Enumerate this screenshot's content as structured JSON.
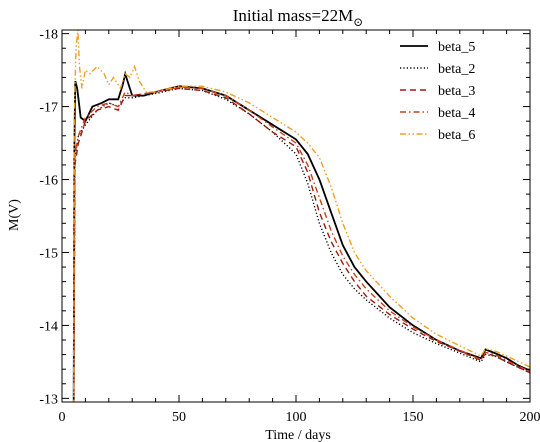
{
  "chart_data": {
    "type": "line",
    "title": "Initial mass=22M",
    "title_subscript_symbol": "⊙",
    "xlabel": "Time / days",
    "ylabel": "M(V)",
    "xlim": [
      0,
      200
    ],
    "ylim": [
      -12.95,
      -18.05
    ],
    "y_axis_inverted": true,
    "xticks": [
      0,
      50,
      100,
      150,
      200
    ],
    "yticks": [
      -13,
      -14,
      -15,
      -16,
      -17,
      -18
    ],
    "grid": false,
    "legend_position": "top-right",
    "series": [
      {
        "name": "beta_5",
        "color": "#000000",
        "dash": "solid",
        "points": [
          [
            5,
            -12.9
          ],
          [
            5.3,
            -16.5
          ],
          [
            5.7,
            -17.35
          ],
          [
            6.5,
            -17.25
          ],
          [
            8,
            -16.85
          ],
          [
            10,
            -16.8
          ],
          [
            13,
            -17
          ],
          [
            17,
            -17.05
          ],
          [
            20,
            -17.1
          ],
          [
            24,
            -17.1
          ],
          [
            26,
            -17.3
          ],
          [
            27,
            -17.45
          ],
          [
            28,
            -17.35
          ],
          [
            30,
            -17.15
          ],
          [
            35,
            -17.15
          ],
          [
            40,
            -17.2
          ],
          [
            50,
            -17.28
          ],
          [
            60,
            -17.25
          ],
          [
            70,
            -17.15
          ],
          [
            80,
            -16.95
          ],
          [
            90,
            -16.75
          ],
          [
            100,
            -16.55
          ],
          [
            105,
            -16.35
          ],
          [
            110,
            -16.0
          ],
          [
            115,
            -15.55
          ],
          [
            120,
            -15.1
          ],
          [
            125,
            -14.8
          ],
          [
            130,
            -14.6
          ],
          [
            140,
            -14.25
          ],
          [
            150,
            -14.0
          ],
          [
            160,
            -13.8
          ],
          [
            170,
            -13.65
          ],
          [
            179,
            -13.55
          ],
          [
            181,
            -13.67
          ],
          [
            185,
            -13.62
          ],
          [
            190,
            -13.55
          ],
          [
            195,
            -13.45
          ],
          [
            200,
            -13.38
          ]
        ]
      },
      {
        "name": "beta_2",
        "color": "#000000",
        "dash": "dotted",
        "points": [
          [
            5,
            -12.9
          ],
          [
            5.5,
            -16.3
          ],
          [
            7,
            -16.6
          ],
          [
            10,
            -16.75
          ],
          [
            15,
            -16.95
          ],
          [
            20,
            -17.05
          ],
          [
            24,
            -17.0
          ],
          [
            27,
            -17.12
          ],
          [
            30,
            -17.12
          ],
          [
            40,
            -17.18
          ],
          [
            50,
            -17.25
          ],
          [
            60,
            -17.22
          ],
          [
            70,
            -17.1
          ],
          [
            80,
            -16.9
          ],
          [
            90,
            -16.65
          ],
          [
            100,
            -16.35
          ],
          [
            105,
            -15.95
          ],
          [
            110,
            -15.4
          ],
          [
            115,
            -15.0
          ],
          [
            120,
            -14.7
          ],
          [
            125,
            -14.5
          ],
          [
            130,
            -14.35
          ],
          [
            140,
            -14.1
          ],
          [
            150,
            -13.9
          ],
          [
            160,
            -13.75
          ],
          [
            170,
            -13.62
          ],
          [
            179,
            -13.5
          ],
          [
            181,
            -13.6
          ],
          [
            185,
            -13.58
          ],
          [
            190,
            -13.5
          ],
          [
            200,
            -13.35
          ]
        ]
      },
      {
        "name": "beta_3",
        "color": "#9b1c10",
        "dash": "dashed",
        "points": [
          [
            5,
            -12.9
          ],
          [
            5.5,
            -16.2
          ],
          [
            7,
            -16.5
          ],
          [
            10,
            -16.8
          ],
          [
            15,
            -16.95
          ],
          [
            20,
            -17.0
          ],
          [
            24,
            -16.95
          ],
          [
            27,
            -17.15
          ],
          [
            30,
            -17.15
          ],
          [
            40,
            -17.2
          ],
          [
            50,
            -17.25
          ],
          [
            60,
            -17.22
          ],
          [
            70,
            -17.12
          ],
          [
            80,
            -16.9
          ],
          [
            90,
            -16.65
          ],
          [
            100,
            -16.45
          ],
          [
            105,
            -16.1
          ],
          [
            110,
            -15.55
          ],
          [
            115,
            -15.15
          ],
          [
            120,
            -14.85
          ],
          [
            125,
            -14.6
          ],
          [
            130,
            -14.4
          ],
          [
            140,
            -14.15
          ],
          [
            150,
            -13.95
          ],
          [
            160,
            -13.78
          ],
          [
            170,
            -13.65
          ],
          [
            179,
            -13.52
          ],
          [
            181,
            -13.62
          ],
          [
            185,
            -13.58
          ],
          [
            190,
            -13.5
          ],
          [
            200,
            -13.35
          ]
        ]
      },
      {
        "name": "beta_4",
        "color": "#c8401a",
        "dash": "dashdot",
        "points": [
          [
            5,
            -12.9
          ],
          [
            5.5,
            -16.35
          ],
          [
            7,
            -16.6
          ],
          [
            10,
            -16.85
          ],
          [
            15,
            -17.0
          ],
          [
            20,
            -17.05
          ],
          [
            24,
            -17.0
          ],
          [
            27,
            -17.2
          ],
          [
            30,
            -17.15
          ],
          [
            40,
            -17.2
          ],
          [
            50,
            -17.27
          ],
          [
            60,
            -17.25
          ],
          [
            70,
            -17.15
          ],
          [
            80,
            -16.95
          ],
          [
            90,
            -16.72
          ],
          [
            100,
            -16.5
          ],
          [
            105,
            -16.2
          ],
          [
            110,
            -15.75
          ],
          [
            115,
            -15.3
          ],
          [
            120,
            -14.95
          ],
          [
            125,
            -14.7
          ],
          [
            130,
            -14.5
          ],
          [
            140,
            -14.2
          ],
          [
            150,
            -13.98
          ],
          [
            160,
            -13.8
          ],
          [
            170,
            -13.66
          ],
          [
            179,
            -13.53
          ],
          [
            181,
            -13.63
          ],
          [
            185,
            -13.6
          ],
          [
            190,
            -13.52
          ],
          [
            200,
            -13.37
          ]
        ]
      },
      {
        "name": "beta_6",
        "color": "#f0a020",
        "dash": "dashdotdot",
        "points": [
          [
            5,
            -12.9
          ],
          [
            5.2,
            -16.8
          ],
          [
            6,
            -17.8
          ],
          [
            6.8,
            -18.05
          ],
          [
            7.5,
            -17.55
          ],
          [
            8.5,
            -17.25
          ],
          [
            10,
            -17.5
          ],
          [
            12,
            -17.45
          ],
          [
            15,
            -17.55
          ],
          [
            18,
            -17.45
          ],
          [
            20,
            -17.3
          ],
          [
            22,
            -17.4
          ],
          [
            25,
            -17.25
          ],
          [
            27,
            -17.45
          ],
          [
            29,
            -17.4
          ],
          [
            31,
            -17.55
          ],
          [
            33,
            -17.35
          ],
          [
            36,
            -17.2
          ],
          [
            40,
            -17.2
          ],
          [
            50,
            -17.28
          ],
          [
            60,
            -17.28
          ],
          [
            70,
            -17.2
          ],
          [
            80,
            -17.05
          ],
          [
            90,
            -16.85
          ],
          [
            100,
            -16.65
          ],
          [
            105,
            -16.5
          ],
          [
            110,
            -16.3
          ],
          [
            115,
            -15.9
          ],
          [
            120,
            -15.4
          ],
          [
            125,
            -15.0
          ],
          [
            130,
            -14.75
          ],
          [
            140,
            -14.4
          ],
          [
            150,
            -14.1
          ],
          [
            160,
            -13.88
          ],
          [
            170,
            -13.72
          ],
          [
            179,
            -13.58
          ],
          [
            181,
            -13.68
          ],
          [
            185,
            -13.65
          ],
          [
            190,
            -13.58
          ],
          [
            200,
            -13.43
          ]
        ]
      }
    ]
  }
}
